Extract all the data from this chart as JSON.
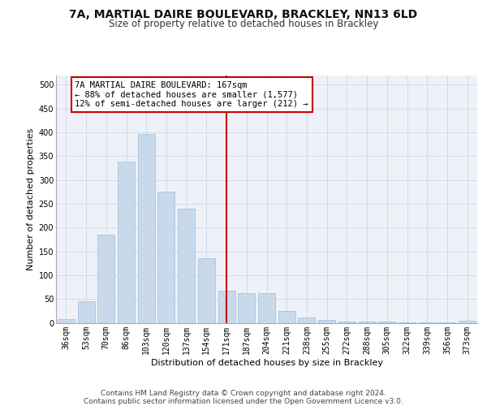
{
  "title1": "7A, MARTIAL DAIRE BOULEVARD, BRACKLEY, NN13 6LD",
  "title2": "Size of property relative to detached houses in Brackley",
  "xlabel": "Distribution of detached houses by size in Brackley",
  "ylabel": "Number of detached properties",
  "categories": [
    "36sqm",
    "53sqm",
    "70sqm",
    "86sqm",
    "103sqm",
    "120sqm",
    "137sqm",
    "154sqm",
    "171sqm",
    "187sqm",
    "204sqm",
    "221sqm",
    "238sqm",
    "255sqm",
    "272sqm",
    "288sqm",
    "305sqm",
    "322sqm",
    "339sqm",
    "356sqm",
    "373sqm"
  ],
  "values": [
    8,
    46,
    185,
    338,
    397,
    275,
    240,
    135,
    68,
    62,
    62,
    25,
    11,
    6,
    3,
    3,
    2,
    1,
    1,
    1,
    4
  ],
  "bar_color": "#c9d9ec",
  "bar_edgecolor": "#a0bcd8",
  "vline_idx": 8,
  "vline_color": "#cc0000",
  "annotation_text": "7A MARTIAL DAIRE BOULEVARD: 167sqm\n← 88% of detached houses are smaller (1,577)\n12% of semi-detached houses are larger (212) →",
  "annotation_box_edgecolor": "#cc0000",
  "footer_text": "Contains HM Land Registry data © Crown copyright and database right 2024.\nContains public sector information licensed under the Open Government Licence v3.0.",
  "ylim": [
    0,
    520
  ],
  "yticks": [
    0,
    50,
    100,
    150,
    200,
    250,
    300,
    350,
    400,
    450,
    500
  ],
  "grid_color": "#c8d8e8",
  "bg_color": "#eef2f8",
  "title1_fontsize": 10,
  "title2_fontsize": 8.5,
  "axis_label_fontsize": 8,
  "tick_fontsize": 7,
  "annot_fontsize": 7.5,
  "footer_fontsize": 6.5
}
